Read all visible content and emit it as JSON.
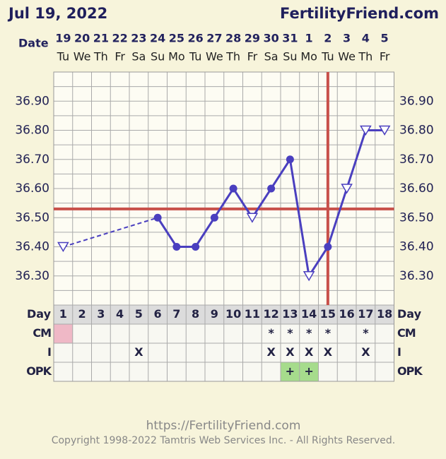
{
  "chart_data": {
    "type": "line",
    "title": "Jul 19, 2022",
    "site": "FertilityFriend.com",
    "date_label": "Date",
    "dates": [
      "19",
      "20",
      "21",
      "22",
      "23",
      "24",
      "25",
      "26",
      "27",
      "28",
      "29",
      "30",
      "31",
      "1",
      "2",
      "3",
      "4",
      "5"
    ],
    "weekdays": [
      "Tu",
      "We",
      "Th",
      "Fr",
      "Sa",
      "Su",
      "Mo",
      "Tu",
      "We",
      "Th",
      "Fr",
      "Sa",
      "Su",
      "Mo",
      "Tu",
      "We",
      "Th",
      "Fr"
    ],
    "day_label": "Day",
    "categories": [
      1,
      2,
      3,
      4,
      5,
      6,
      7,
      8,
      9,
      10,
      11,
      12,
      13,
      14,
      15,
      16,
      17,
      18
    ],
    "series": [
      {
        "name": "Temperature",
        "color": "#4a3fbf",
        "values": [
          36.4,
          null,
          null,
          null,
          null,
          36.5,
          36.4,
          36.4,
          36.5,
          36.6,
          36.5,
          36.6,
          36.7,
          36.3,
          36.4,
          36.6,
          36.8,
          36.8
        ],
        "markers": [
          "open",
          null,
          null,
          null,
          null,
          "filled",
          "filled",
          "filled",
          "filled",
          "filled",
          "open",
          "filled",
          "filled",
          "open",
          "filled",
          "open",
          "open",
          "open"
        ]
      }
    ],
    "ylim": [
      36.2,
      37.0
    ],
    "yticks": [
      {
        "value": 36.3,
        "label": "36.30"
      },
      {
        "value": 36.4,
        "label": "36.40"
      },
      {
        "value": 36.5,
        "label": "36.50"
      },
      {
        "value": 36.6,
        "label": "36.60"
      },
      {
        "value": 36.7,
        "label": "36.70"
      },
      {
        "value": 36.8,
        "label": "36.80"
      },
      {
        "value": 36.9,
        "label": "36.90"
      }
    ],
    "minor_yticks": [
      36.25,
      36.35,
      36.45,
      36.55,
      36.65,
      36.75,
      36.85,
      36.95
    ],
    "grid": true,
    "coverline": 36.53,
    "ovulation_day": 15,
    "line_color": "#c8504a",
    "rows": [
      {
        "name": "CM",
        "cells": [
          null,
          null,
          null,
          null,
          null,
          null,
          null,
          null,
          null,
          null,
          null,
          "*",
          "*",
          "*",
          "*",
          null,
          "*",
          null
        ],
        "fills": [
          "#efb8c6",
          null,
          null,
          null,
          null,
          null,
          null,
          null,
          null,
          null,
          null,
          null,
          null,
          null,
          null,
          null,
          null,
          null
        ]
      },
      {
        "name": "I",
        "cells": [
          null,
          null,
          null,
          null,
          "X",
          null,
          null,
          null,
          null,
          null,
          null,
          "X",
          "X",
          "X",
          "X",
          null,
          "X",
          null
        ],
        "fills": [
          null,
          null,
          null,
          null,
          null,
          null,
          null,
          null,
          null,
          null,
          null,
          null,
          null,
          null,
          null,
          null,
          null,
          null
        ]
      },
      {
        "name": "OPK",
        "cells": [
          null,
          null,
          null,
          null,
          null,
          null,
          null,
          null,
          null,
          null,
          null,
          null,
          "+",
          "+",
          null,
          null,
          null,
          null
        ],
        "fills": [
          null,
          null,
          null,
          null,
          null,
          null,
          null,
          null,
          null,
          null,
          null,
          null,
          "#a6dc8c",
          "#a6dc8c",
          null,
          null,
          null,
          null
        ]
      }
    ],
    "url": "https://FertilityFriend.com",
    "copyright": "Copyright 1998-2022 Tamtris Web Services Inc. - All Rights Reserved."
  }
}
